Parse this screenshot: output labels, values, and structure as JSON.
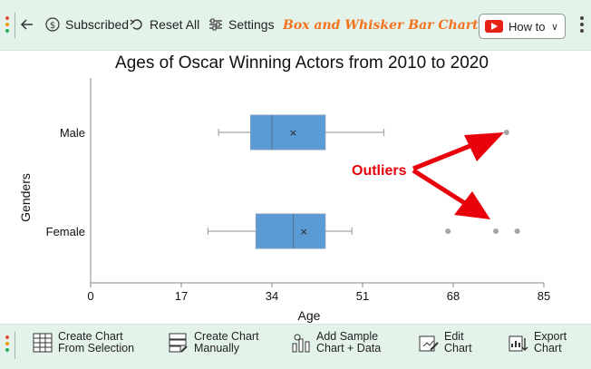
{
  "toolbar": {
    "subscribed_label": "Subscribed",
    "reset_label": "Reset All",
    "settings_label": "Settings",
    "brand_title": "Box and Whisker Bar Chart",
    "howto_label": "How to"
  },
  "bottom_toolbar": {
    "create_selection": [
      "Create Chart",
      "From Selection"
    ],
    "create_manual": [
      "Create Chart",
      "Manually"
    ],
    "add_sample": [
      "Add Sample",
      "Chart + Data"
    ],
    "edit_chart": [
      "Edit",
      "Chart"
    ],
    "export_chart": [
      "Export",
      "Chart"
    ]
  },
  "colors": {
    "toolbar_bg": "#e4f3ea",
    "box_fill": "#5b9bd5",
    "brand": "#f4731f",
    "annotation": "#e8000b",
    "outlier": "#a5a5a5"
  },
  "chart_data": {
    "type": "box",
    "orientation": "horizontal",
    "title": "Ages of Oscar Winning Actors from 2010 to 2020",
    "xlabel": "Age",
    "ylabel": "Genders",
    "xlim": [
      0,
      85
    ],
    "xticks": [
      0,
      17,
      34,
      51,
      68,
      85
    ],
    "categories": [
      "Male",
      "Female"
    ],
    "series": [
      {
        "category": "Male",
        "whisker_low": 24,
        "q1": 30,
        "median": 34,
        "q3": 44,
        "whisker_high": 55,
        "mean": 38,
        "outliers": [
          78
        ]
      },
      {
        "category": "Female",
        "whisker_low": 22,
        "q1": 31,
        "median": 38,
        "q3": 44,
        "whisker_high": 49,
        "mean": 40,
        "outliers": [
          67,
          76,
          80
        ]
      }
    ],
    "annotation": "Outliers"
  }
}
